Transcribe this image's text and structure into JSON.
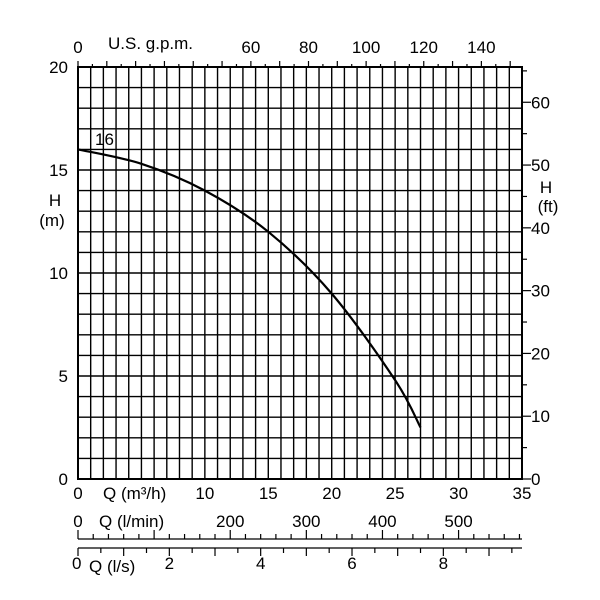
{
  "chart_data": {
    "type": "line",
    "x_axis": {
      "label": "Q (m³/h)",
      "range": [
        0,
        35
      ],
      "ticks": [
        "0",
        "10",
        "15",
        "20",
        "25",
        "30",
        "35"
      ]
    },
    "y_axis_left": {
      "label_top": "H",
      "label_bottom": "(m)",
      "range": [
        0,
        20
      ],
      "ticks": [
        "0",
        "5",
        "10",
        "15",
        "20"
      ]
    },
    "y_axis_right": {
      "label_top": "H",
      "label_bottom": "(ft)",
      "ticks": [
        "0",
        "10",
        "20",
        "30",
        "40",
        "50",
        "60"
      ]
    },
    "top_axis": {
      "label": "U.S. g.p.m.",
      "ticks": [
        "0",
        "60",
        "80",
        "100",
        "120",
        "140"
      ]
    },
    "lmin_axis": {
      "label": "Q (l/min)",
      "ticks": [
        "0",
        "200",
        "300",
        "400",
        "500"
      ]
    },
    "ls_axis": {
      "label": "Q (l/s)",
      "ticks": [
        "0",
        "2",
        "4",
        "6",
        "8"
      ]
    },
    "grid": true,
    "series": [
      {
        "name": "16",
        "x": [
          0,
          5,
          10,
          15,
          20,
          25,
          27
        ],
        "y": [
          16,
          15.3,
          14.0,
          12.0,
          9.0,
          4.8,
          2.5
        ]
      }
    ]
  }
}
